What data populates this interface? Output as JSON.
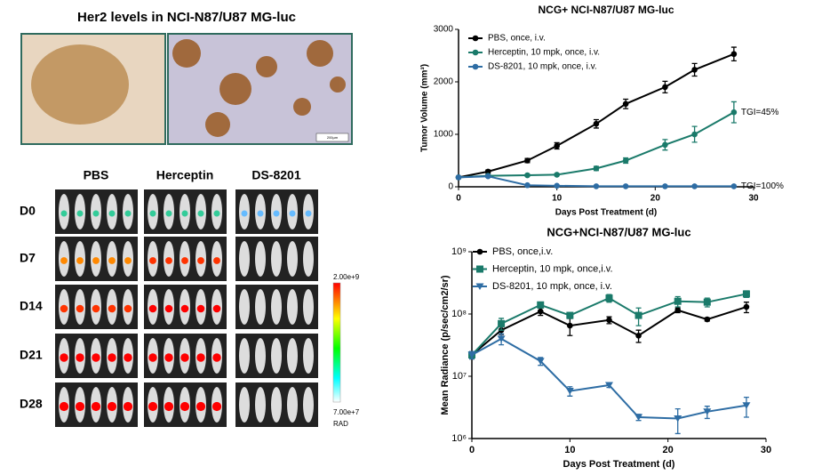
{
  "ihc": {
    "title": "Her2 levels in NCI-N87/U87 MG-luc",
    "scale_bar": "200µm"
  },
  "imaging": {
    "groups": [
      "PBS",
      "Herceptin",
      "DS-8201"
    ],
    "days": [
      "D0",
      "D7",
      "D14",
      "D21",
      "D28"
    ],
    "colorbar": {
      "max": "2.00e+9",
      "min": "7.00e+7",
      "unit": "RAD"
    }
  },
  "chart_data": [
    {
      "type": "line",
      "title": "NCG+ NCI-N87/U87 MG-luc",
      "x_label": "Days Post Treatment (d)",
      "y_label": "Tumor Volume (mm³)",
      "x": [
        0,
        3,
        7,
        10,
        14,
        17,
        21,
        24,
        28
      ],
      "xlim": [
        0,
        30
      ],
      "xticks": [
        0,
        10,
        20,
        30
      ],
      "ylim": [
        0,
        3000
      ],
      "yticks": [
        0,
        1000,
        2000,
        3000
      ],
      "series": [
        {
          "name": "PBS, once, i.v.",
          "color": "#000000",
          "marker": "circle",
          "values": [
            180,
            290,
            500,
            780,
            1200,
            1580,
            1900,
            2230,
            2530
          ],
          "errors": [
            20,
            30,
            40,
            60,
            80,
            90,
            110,
            120,
            130
          ]
        },
        {
          "name": "Herceptin, 10 mpk, once, i.v.",
          "color": "#1a7a6a",
          "marker": "circle",
          "values": [
            180,
            210,
            220,
            230,
            350,
            500,
            800,
            1000,
            1420
          ],
          "errors": [
            20,
            20,
            20,
            20,
            40,
            50,
            100,
            150,
            200
          ]
        },
        {
          "name": "DS-8201, 10 mpk, once, i.v.",
          "color": "#2e6da4",
          "marker": "circle",
          "values": [
            180,
            200,
            30,
            20,
            10,
            10,
            10,
            10,
            10
          ],
          "errors": [
            20,
            20,
            10,
            5,
            5,
            5,
            5,
            5,
            5
          ]
        }
      ],
      "annotations": [
        {
          "text": "TGI=45%",
          "x": 28,
          "y": 1420,
          "series": 1
        },
        {
          "text": "TGI=100%",
          "x": 28,
          "y": 10,
          "series": 2
        }
      ]
    },
    {
      "type": "line",
      "title": "NCG+NCI-N87/U87 MG-luc",
      "x_label": "Days Post Treatment (d)",
      "y_label": "Mean Radiance (p/sec/cm2/sr)",
      "x": [
        0,
        3,
        7,
        10,
        14,
        17,
        21,
        24,
        28
      ],
      "xlim": [
        0,
        30
      ],
      "xticks": [
        0,
        10,
        20,
        30
      ],
      "log_y": true,
      "ylim": [
        1000000,
        1000000000
      ],
      "yticks": [
        {
          "value": 1000000,
          "label": "10⁶"
        },
        {
          "value": 10000000,
          "label": "10⁷"
        },
        {
          "value": 100000000,
          "label": "10⁸"
        },
        {
          "value": 1000000000,
          "label": "10⁹"
        }
      ],
      "series": [
        {
          "name": "PBS, once,i.v.",
          "color": "#000000",
          "marker": "circle",
          "values": [
            22000000,
            55000000,
            110000000,
            65000000,
            80000000,
            45000000,
            115000000,
            82000000,
            130000000
          ],
          "errors": [
            3000000,
            8000000,
            15000000,
            20000000,
            10000000,
            10000000,
            10000000,
            5000000,
            25000000
          ]
        },
        {
          "name": "Herceptin, 10 mpk, once,i.v.",
          "color": "#1a7a6a",
          "marker": "square",
          "values": [
            22000000,
            70000000,
            140000000,
            95000000,
            180000000,
            95000000,
            160000000,
            155000000,
            210000000
          ],
          "errors": [
            3000000,
            15000000,
            15000000,
            10000000,
            25000000,
            30000000,
            30000000,
            25000000,
            25000000
          ]
        },
        {
          "name": "DS-8201, 10 mpk, once, i.v.",
          "color": "#2e6da4",
          "marker": "triangle",
          "values": [
            22000000,
            40000000,
            17500000,
            5800000,
            7200000,
            2200000,
            2100000,
            2700000,
            3400000
          ],
          "errors": [
            3000000,
            8000000,
            2500000,
            1000000,
            600000,
            250000,
            900000,
            600000,
            1200000
          ]
        }
      ]
    }
  ]
}
